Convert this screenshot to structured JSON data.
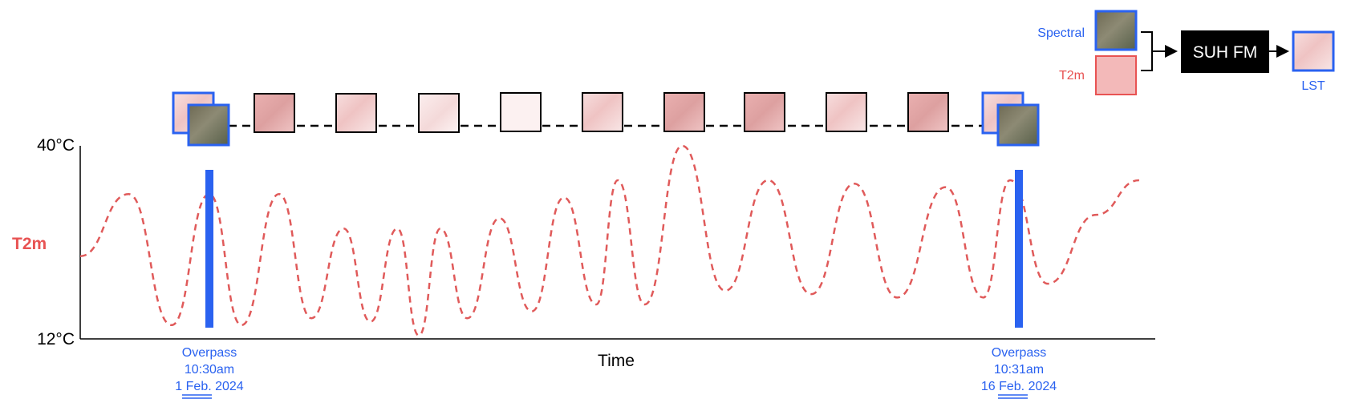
{
  "chart_data": {
    "type": "line",
    "title": "",
    "xlabel": "Time",
    "ylabel": "T2m",
    "ylim": [
      12,
      40
    ],
    "y_tick_labels": [
      "40°C",
      "12°C"
    ],
    "series": [
      {
        "name": "T2m",
        "x": [
          0.0,
          0.045,
          0.085,
          0.12,
          0.15,
          0.185,
          0.215,
          0.245,
          0.27,
          0.295,
          0.315,
          0.335,
          0.36,
          0.39,
          0.42,
          0.45,
          0.48,
          0.5,
          0.525,
          0.56,
          0.6,
          0.64,
          0.68,
          0.72,
          0.76,
          0.805,
          0.84,
          0.865,
          0.9,
          0.945,
          0.985
        ],
        "values": [
          24,
          33,
          14,
          33,
          14,
          33,
          15,
          28,
          14.5,
          28,
          12.5,
          28,
          15,
          29.5,
          16,
          32.5,
          17,
          35,
          17,
          40,
          19,
          35,
          18.5,
          34.5,
          18,
          34,
          18,
          35,
          20,
          30,
          35
        ]
      }
    ],
    "overpass_markers": [
      {
        "label": "Overpass",
        "time": "10:30am",
        "date_prefix": "1",
        "date_month": "Feb.",
        "date_year": "2024"
      },
      {
        "label": "Overpass",
        "time": "10:31am",
        "date_prefix": "16",
        "date_month": "Feb.",
        "date_year": "2024"
      }
    ],
    "grid": false,
    "legend": "none"
  },
  "legend_panel": {
    "spectral_label": "Spectral",
    "t2m_label": "T2m",
    "model_label": "SUH FM",
    "output_label": "LST"
  },
  "colors": {
    "blue": "#2a62f0",
    "red": "#e85353",
    "black": "#000000",
    "pink_fill": "#f3b9b9"
  }
}
